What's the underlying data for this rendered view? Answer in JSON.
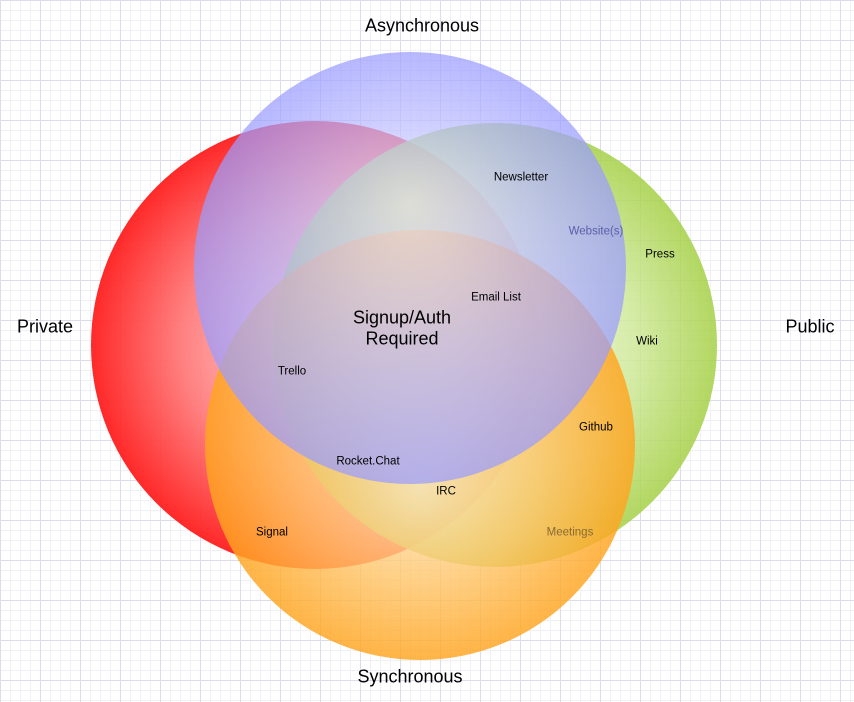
{
  "axes": {
    "top": "Asynchronous",
    "bottom": "Synchronous",
    "left": "Private",
    "right": "Public"
  },
  "center": {
    "line1": "Signup/Auth",
    "line2": "Required"
  },
  "items": {
    "newsletter": "Newsletter",
    "websites": "Website(s)",
    "press": "Press",
    "email_list": "Email List",
    "wiki": "Wiki",
    "trello": "Trello",
    "github": "Github",
    "rocket_chat": "Rocket.Chat",
    "irc": "IRC",
    "signal": "Signal",
    "meetings": "Meetings"
  },
  "colors": {
    "private": "#ff2a2a",
    "asynchronous": "#9a9cff",
    "public": "#a8d44a",
    "synchronous": "#ffa521"
  }
}
